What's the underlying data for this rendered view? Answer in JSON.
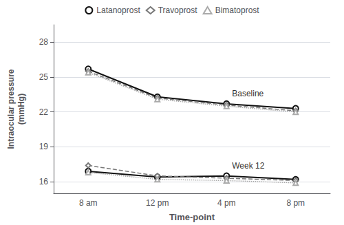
{
  "chart_data": {
    "type": "line",
    "xlabel": "Time-point",
    "ylabel": "Intraocular pressure\n(mmHg)",
    "categories": [
      "8 am",
      "12 pm",
      "4 pm",
      "8 pm"
    ],
    "series": [
      {
        "name": "Latanoprost",
        "color": "#111111",
        "marker": "circle",
        "line_style": "solid",
        "values": [
          25.7,
          23.3,
          22.7,
          22.3
        ]
      },
      {
        "name": "Travoprost",
        "color": "#777777",
        "marker": "diamond",
        "line_style": "dashed",
        "values": [
          25.5,
          23.2,
          22.6,
          22.1
        ]
      },
      {
        "name": "Bimatoprost",
        "color": "#aaaaaa",
        "marker": "triangle",
        "line_style": "dotted",
        "values": [
          25.4,
          23.1,
          22.5,
          22.0
        ]
      },
      {
        "name": "Latanoprost",
        "color": "#111111",
        "marker": "circle",
        "line_style": "solid",
        "values": [
          16.9,
          16.4,
          16.5,
          16.2
        ]
      },
      {
        "name": "Travoprost",
        "color": "#777777",
        "marker": "diamond",
        "line_style": "dashed",
        "values": [
          17.4,
          16.5,
          16.3,
          16.1
        ]
      },
      {
        "name": "Bimatoprost",
        "color": "#aaaaaa",
        "marker": "triangle",
        "line_style": "dotted",
        "values": [
          16.8,
          16.2,
          16.1,
          15.9
        ]
      }
    ],
    "ylim": [
      15.0,
      29.5
    ],
    "yticks": [
      16,
      19,
      22,
      25,
      28
    ],
    "grid": true,
    "legend": "top",
    "annotations": [
      {
        "text": "Baseline",
        "x": "4 pm",
        "y": 23.6
      },
      {
        "text": "Week 12",
        "x": "4 pm",
        "y": 17.35
      }
    ]
  }
}
